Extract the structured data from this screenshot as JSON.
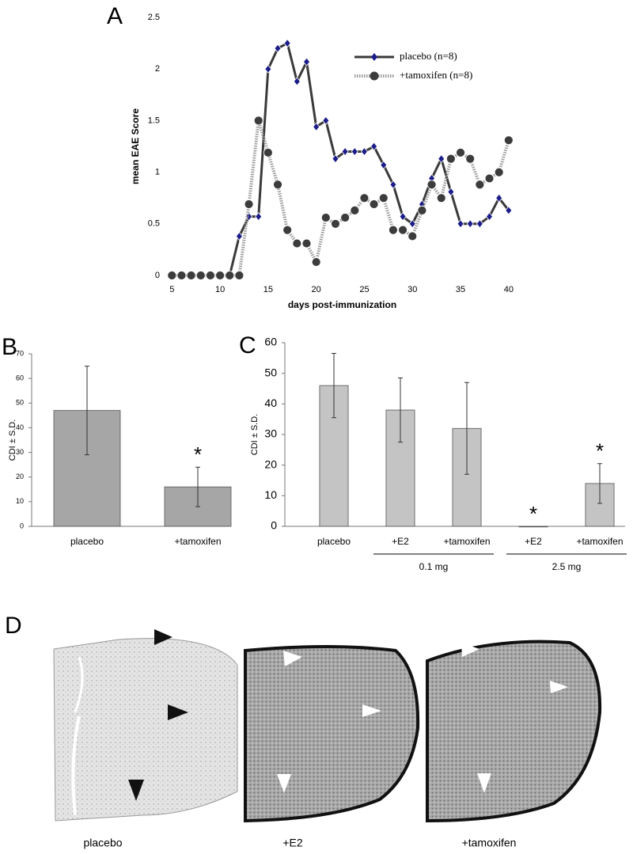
{
  "chart_data": [
    {
      "panel": "A",
      "type": "line",
      "xlabel": "days post-immunization",
      "ylabel": "mean EAE Score",
      "x": [
        5,
        6,
        7,
        8,
        9,
        10,
        11,
        12,
        13,
        14,
        15,
        16,
        17,
        18,
        19,
        20,
        21,
        22,
        23,
        24,
        25,
        26,
        27,
        28,
        29,
        30,
        31,
        32,
        33,
        34,
        35,
        36,
        37,
        38,
        39,
        40
      ],
      "xlim": [
        4.4,
        41
      ],
      "xticks": [
        5,
        10,
        15,
        20,
        25,
        30,
        35,
        40
      ],
      "ylim": [
        0,
        2.5
      ],
      "yticks": [
        0,
        0.5,
        1,
        1.5,
        2,
        2.5
      ],
      "legend": "upper right",
      "series": [
        {
          "name": "placebo (n=8)",
          "color": "#3a3a3a",
          "marker": "diamond",
          "marker_color": "#1c1c8a",
          "values": [
            0,
            0,
            0,
            0,
            0,
            0,
            0,
            0.38,
            0.57,
            0.57,
            2.0,
            2.2,
            2.25,
            1.88,
            2.07,
            1.44,
            1.5,
            1.13,
            1.2,
            1.2,
            1.2,
            1.25,
            1.07,
            0.88,
            0.57,
            0.5,
            0.69,
            0.94,
            1.13,
            0.81,
            0.5,
            0.5,
            0.5,
            0.57,
            0.75,
            0.63
          ]
        },
        {
          "name": "+tamoxifen (n=8)",
          "color": "#9a9a9a",
          "marker": "circle",
          "marker_color": "#3c3c3c",
          "values": [
            0,
            0,
            0,
            0,
            0,
            0,
            0,
            0,
            0.69,
            1.5,
            1.19,
            0.88,
            0.44,
            0.31,
            0.31,
            0.13,
            0.56,
            0.5,
            0.56,
            0.63,
            0.75,
            0.69,
            0.75,
            0.44,
            0.44,
            0.38,
            0.63,
            0.88,
            0.75,
            1.13,
            1.19,
            1.13,
            0.88,
            0.94,
            1.0,
            1.31
          ]
        }
      ]
    },
    {
      "panel": "B",
      "type": "bar",
      "ylabel": "CDI ± S.D.",
      "categories": [
        "placebo",
        "+tamoxifen"
      ],
      "ylim": [
        0,
        70
      ],
      "yticks": [
        0,
        10,
        20,
        30,
        40,
        50,
        60,
        70
      ],
      "series": [
        {
          "color": "#a6a6a6",
          "values": [
            47,
            16
          ],
          "errors": [
            18,
            8
          ]
        }
      ],
      "significance": [
        null,
        "*"
      ]
    },
    {
      "panel": "C",
      "type": "bar",
      "ylabel": "CDI ± S.D.",
      "categories": [
        "placebo",
        "+E2",
        "+tamoxifen",
        "+E2",
        "+tamoxifen"
      ],
      "groups": [
        "0.1 mg",
        "2.5 mg"
      ],
      "ylim": [
        0,
        60
      ],
      "yticks": [
        0,
        10,
        20,
        30,
        40,
        50,
        60
      ],
      "series": [
        {
          "color": "#c4c4c4",
          "values": [
            46,
            38,
            32,
            0,
            14
          ],
          "errors": [
            10.5,
            10.5,
            15,
            null,
            6.5
          ]
        }
      ],
      "significance": [
        null,
        null,
        null,
        "*",
        "*"
      ]
    }
  ],
  "panel_d": {
    "label": "D",
    "captions": [
      "placebo",
      "+E2",
      "+tamoxifen"
    ]
  }
}
